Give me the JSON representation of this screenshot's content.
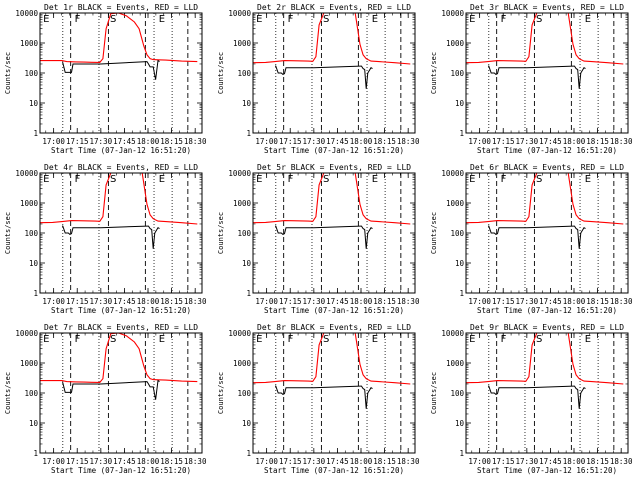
{
  "chart_data": {
    "type": "line",
    "grid_layout": "3x3",
    "shared": {
      "ylabel": "Counts/sec",
      "xlabel": "Start Time (07-Jan-12 16:51:20)",
      "xtick_labels": [
        "17:00",
        "17:15",
        "17:30",
        "17:45",
        "18:00",
        "18:15",
        "18:30"
      ],
      "xtick_minutes": [
        8.67,
        23.67,
        38.67,
        53.67,
        68.67,
        83.67,
        98.67
      ],
      "xlim_minutes": [
        0,
        103
      ],
      "yscale": "log",
      "ylim": [
        1,
        10000
      ],
      "ytick_labels": [
        "1",
        "10",
        "100",
        "1000",
        "10000"
      ],
      "ytick_values": [
        1,
        10,
        100,
        1000,
        10000
      ],
      "series_names": [
        "Events",
        "LLD"
      ],
      "series_colors": {
        "Events": "#000000",
        "LLD": "#ff0000"
      },
      "dotted_lines_minutes": [
        14.5,
        37.5,
        72.5,
        84.0
      ],
      "dashed_lines_minutes": [
        19.5,
        43.5,
        67.0,
        94.0
      ],
      "markers": [
        {
          "label": "E",
          "minute": 2.0
        },
        {
          "label": "F",
          "minute": 22.0
        },
        {
          "label": "S",
          "minute": 44.5
        },
        {
          "label": "E",
          "minute": 75.5
        }
      ]
    },
    "panels": [
      {
        "title": "Det 1r BLACK = Events, RED = LLD",
        "series": [
          {
            "name": "LLD",
            "x": [
              0,
              14,
              17,
              23,
              28,
              33,
              38,
              40,
              42,
              45,
              50,
              55,
              60,
              63,
              66,
              68,
              70,
              72,
              75,
              80,
              90,
              100
            ],
            "y": [
              260,
              260,
              240,
              235,
              230,
              228,
              225,
              300,
              3000,
              9500,
              10000,
              8000,
              5000,
              3000,
              800,
              400,
              300,
              280,
              275,
              270,
              250,
              240
            ]
          },
          {
            "name": "Events",
            "x": [
              14,
              14.5,
              16,
              18,
              19,
              20,
              21,
              23,
              25,
              28,
              31,
              34,
              37,
              38.5,
              68,
              69,
              70,
              72,
              73.5,
              75,
              76
            ],
            "y": [
              220,
              220,
              105,
              105,
              105,
              105,
              200,
              200,
              200,
              200,
              200,
              200,
              200,
              200,
              240,
              200,
              160,
              160,
              60,
              260,
              240
            ]
          }
        ]
      },
      {
        "title": "Det 2r BLACK = Events, RED = LLD",
        "series": [
          {
            "name": "LLD",
            "x": [
              0,
              8,
              14,
              20,
              28,
              35,
              38,
              40,
              42,
              45,
              50,
              55,
              60,
              65,
              68,
              70,
              72,
              75,
              80,
              90,
              100
            ],
            "y": [
              220,
              225,
              240,
              260,
              255,
              250,
              245,
              350,
              4000,
              10000,
              10000,
              10000,
              10000,
              10000,
              900,
              400,
              300,
              250,
              240,
              220,
              200
            ]
          },
          {
            "name": "Events",
            "x": [
              14,
              14.5,
              16,
              18,
              19,
              20,
              21,
              23,
              26,
              30,
              34,
              37,
              38.5,
              68,
              69,
              70,
              71,
              72,
              73,
              75,
              76
            ],
            "y": [
              170,
              170,
              100,
              100,
              90,
              95,
              150,
              150,
              150,
              150,
              150,
              150,
              150,
              170,
              170,
              140,
              130,
              30,
              100,
              150,
              140
            ]
          }
        ]
      },
      {
        "title": "Det 3r BLACK = Events, RED = LLD",
        "series": [
          {
            "name": "LLD",
            "x": [
              0,
              8,
              14,
              20,
              28,
              35,
              38,
              40,
              42,
              45,
              50,
              55,
              60,
              65,
              68,
              70,
              72,
              75,
              80,
              90,
              100
            ],
            "y": [
              220,
              225,
              240,
              260,
              255,
              250,
              245,
              350,
              4000,
              10000,
              10000,
              10000,
              10000,
              10000,
              900,
              400,
              300,
              250,
              240,
              220,
              200
            ]
          },
          {
            "name": "Events",
            "x": [
              14,
              14.5,
              16,
              18,
              19,
              20,
              21,
              23,
              26,
              30,
              34,
              37,
              38.5,
              68,
              69,
              70,
              71,
              72,
              73,
              75,
              76
            ],
            "y": [
              170,
              170,
              100,
              100,
              90,
              95,
              150,
              150,
              150,
              150,
              150,
              150,
              150,
              170,
              170,
              140,
              130,
              30,
              100,
              150,
              140
            ]
          }
        ]
      },
      {
        "title": "Det 4r BLACK = Events, RED = LLD",
        "series": [
          {
            "name": "LLD",
            "x": [
              0,
              8,
              14,
              20,
              28,
              35,
              38,
              40,
              42,
              45,
              50,
              55,
              60,
              65,
              68,
              70,
              72,
              75,
              80,
              90,
              100
            ],
            "y": [
              220,
              225,
              240,
              260,
              255,
              250,
              245,
              350,
              4000,
              10000,
              10000,
              10000,
              10000,
              10000,
              900,
              400,
              300,
              250,
              240,
              220,
              200
            ]
          },
          {
            "name": "Events",
            "x": [
              14,
              14.5,
              16,
              18,
              19,
              20,
              21,
              23,
              26,
              30,
              34,
              37,
              38.5,
              68,
              69,
              70,
              71,
              72,
              73,
              75,
              76
            ],
            "y": [
              170,
              170,
              100,
              100,
              90,
              95,
              150,
              150,
              150,
              150,
              150,
              150,
              150,
              170,
              170,
              140,
              130,
              30,
              100,
              150,
              140
            ]
          }
        ]
      },
      {
        "title": "Det 5r BLACK = Events, RED = LLD",
        "series": [
          {
            "name": "LLD",
            "x": [
              0,
              8,
              14,
              20,
              28,
              35,
              38,
              40,
              42,
              45,
              50,
              55,
              60,
              65,
              68,
              70,
              72,
              75,
              80,
              90,
              100
            ],
            "y": [
              220,
              225,
              240,
              260,
              255,
              250,
              245,
              350,
              4000,
              10000,
              10000,
              10000,
              10000,
              10000,
              900,
              400,
              300,
              250,
              240,
              220,
              200
            ]
          },
          {
            "name": "Events",
            "x": [
              14,
              14.5,
              16,
              18,
              19,
              20,
              21,
              23,
              26,
              30,
              34,
              37,
              38.5,
              68,
              69,
              70,
              71,
              72,
              73,
              75,
              76
            ],
            "y": [
              170,
              170,
              100,
              100,
              90,
              95,
              150,
              150,
              150,
              150,
              150,
              150,
              150,
              170,
              170,
              140,
              130,
              30,
              100,
              150,
              140
            ]
          }
        ]
      },
      {
        "title": "Det 6r BLACK = Events, RED = LLD",
        "series": [
          {
            "name": "LLD",
            "x": [
              0,
              8,
              14,
              20,
              28,
              35,
              38,
              40,
              42,
              45,
              50,
              55,
              60,
              65,
              68,
              70,
              72,
              75,
              80,
              90,
              100
            ],
            "y": [
              220,
              225,
              240,
              260,
              255,
              250,
              245,
              350,
              4000,
              10000,
              10000,
              10000,
              10000,
              10000,
              900,
              400,
              300,
              250,
              240,
              220,
              200
            ]
          },
          {
            "name": "Events",
            "x": [
              14,
              14.5,
              16,
              18,
              19,
              20,
              21,
              23,
              26,
              30,
              34,
              37,
              38.5,
              68,
              69,
              70,
              71,
              72,
              73,
              75,
              76
            ],
            "y": [
              170,
              170,
              100,
              100,
              90,
              95,
              150,
              150,
              150,
              150,
              150,
              150,
              150,
              170,
              170,
              140,
              130,
              30,
              100,
              150,
              140
            ]
          }
        ]
      },
      {
        "title": "Det 7r BLACK = Events, RED = LLD",
        "series": [
          {
            "name": "LLD",
            "x": [
              0,
              14,
              17,
              23,
              28,
              33,
              38,
              40,
              42,
              45,
              50,
              55,
              60,
              63,
              66,
              68,
              70,
              72,
              75,
              80,
              90,
              100
            ],
            "y": [
              260,
              260,
              240,
              235,
              230,
              228,
              225,
              300,
              3000,
              9500,
              10000,
              8000,
              5000,
              3000,
              800,
              400,
              300,
              280,
              275,
              270,
              250,
              240
            ]
          },
          {
            "name": "Events",
            "x": [
              14,
              14.5,
              16,
              18,
              19,
              20,
              21,
              23,
              25,
              28,
              31,
              34,
              37,
              38.5,
              68,
              69,
              70,
              72,
              73.5,
              75,
              76
            ],
            "y": [
              220,
              220,
              105,
              105,
              105,
              105,
              200,
              200,
              200,
              200,
              200,
              200,
              200,
              200,
              240,
              200,
              160,
              160,
              60,
              260,
              240
            ]
          }
        ]
      },
      {
        "title": "Det 8r BLACK = Events, RED = LLD",
        "series": [
          {
            "name": "LLD",
            "x": [
              0,
              8,
              14,
              20,
              28,
              35,
              38,
              40,
              42,
              45,
              50,
              55,
              60,
              65,
              68,
              70,
              72,
              75,
              80,
              90,
              100
            ],
            "y": [
              220,
              225,
              240,
              260,
              255,
              250,
              245,
              350,
              4000,
              10000,
              10000,
              10000,
              10000,
              10000,
              900,
              400,
              300,
              250,
              240,
              220,
              200
            ]
          },
          {
            "name": "Events",
            "x": [
              14,
              14.5,
              16,
              18,
              19,
              20,
              21,
              23,
              26,
              30,
              34,
              37,
              38.5,
              68,
              69,
              70,
              71,
              72,
              73,
              75,
              76
            ],
            "y": [
              170,
              170,
              100,
              100,
              90,
              95,
              150,
              150,
              150,
              150,
              150,
              150,
              150,
              170,
              170,
              140,
              130,
              30,
              100,
              150,
              140
            ]
          }
        ]
      },
      {
        "title": "Det 9r BLACK = Events, RED = LLD",
        "series": [
          {
            "name": "LLD",
            "x": [
              0,
              8,
              14,
              20,
              28,
              35,
              38,
              40,
              42,
              45,
              50,
              55,
              60,
              65,
              68,
              70,
              72,
              75,
              80,
              90,
              100
            ],
            "y": [
              220,
              225,
              240,
              260,
              255,
              250,
              245,
              350,
              4000,
              10000,
              10000,
              10000,
              10000,
              10000,
              900,
              400,
              300,
              250,
              240,
              220,
              200
            ]
          },
          {
            "name": "Events",
            "x": [
              14,
              14.5,
              16,
              18,
              19,
              20,
              21,
              23,
              26,
              30,
              34,
              37,
              38.5,
              68,
              69,
              70,
              71,
              72,
              73,
              75,
              76
            ],
            "y": [
              170,
              170,
              100,
              100,
              90,
              95,
              150,
              150,
              150,
              150,
              150,
              150,
              150,
              170,
              170,
              140,
              130,
              30,
              100,
              150,
              140
            ]
          }
        ]
      }
    ]
  }
}
